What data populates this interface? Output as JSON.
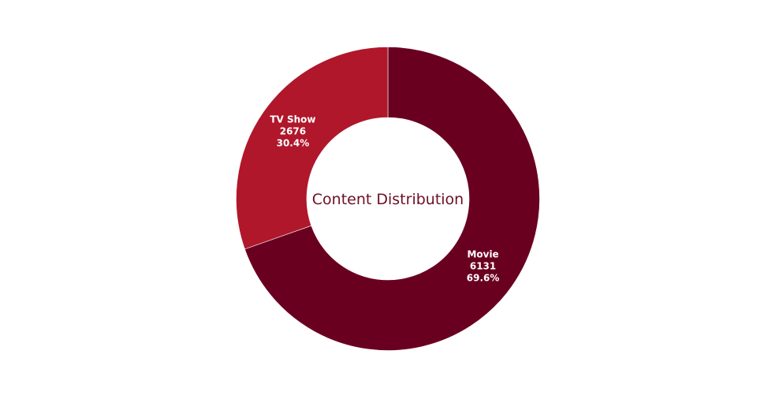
{
  "chart_data": {
    "type": "pie",
    "hole": true,
    "center_text": "Content Distribution",
    "center_text_color": "#6b0f25",
    "categories": [
      "Movie",
      "TV Show"
    ],
    "values": [
      6131,
      2676
    ],
    "percent_labels": [
      "69.6%",
      "30.4%"
    ],
    "colors": [
      "#6a0020",
      "#b0172b"
    ],
    "slice_border_color": "#ffffff",
    "label_color": "#ffffff",
    "legend": "none",
    "direction": "clockwise",
    "start": "top"
  }
}
